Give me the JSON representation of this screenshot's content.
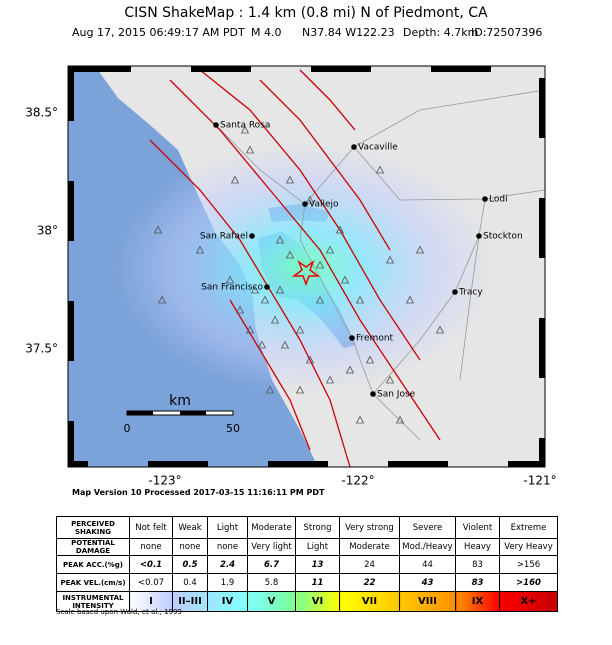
{
  "header": {
    "title": "CISN ShakeMap : 1.4 km (0.8 mi) N of Piedmont, CA",
    "date": "Aug 17, 2015 06:49:17 AM PDT",
    "magnitude": "M 4.0",
    "location": "N37.84 W122.23",
    "depth": "Depth: 4.7km",
    "id": "ID:72507396"
  },
  "map": {
    "lat_labels": [
      "38.5°",
      "38°",
      "37.5°"
    ],
    "lon_labels": [
      "-123°",
      "-122°",
      "-121°"
    ],
    "cities": [
      "Santa Rosa",
      "Vacaville",
      "Vallejo",
      "Lodi",
      "San Rafael",
      "Stockton",
      "San Francisco",
      "Tracy",
      "Fremont",
      "San Jose"
    ],
    "scale_bar": {
      "unit": "km",
      "start": "0",
      "end": "50"
    }
  },
  "processed": "Map Version 10 Processed 2017-03-15 11:16:11 PM PDT",
  "table": {
    "rows": [
      [
        "PERCEIVED SHAKING",
        "Not felt",
        "Weak",
        "Light",
        "Moderate",
        "Strong",
        "Very strong",
        "Severe",
        "Violent",
        "Extreme"
      ],
      [
        "POTENTIAL DAMAGE",
        "none",
        "none",
        "none",
        "Very light",
        "Light",
        "Moderate",
        "Mod./Heavy",
        "Heavy",
        "Very Heavy"
      ],
      [
        "PEAK ACC.(%g)",
        "<0.1",
        "0.5",
        "2.4",
        "6.7",
        "13",
        "24",
        "44",
        "83",
        ">156"
      ],
      [
        "PEAK VEL.(cm/s)",
        "<0.07",
        "0.4",
        "1.9",
        "5.8",
        "11",
        "22",
        "43",
        "83",
        ">160"
      ],
      [
        "INSTRUMENTAL INTENSITY",
        "I",
        "II–III",
        "IV",
        "V",
        "VI",
        "VII",
        "VIII",
        "IX",
        "X+"
      ]
    ]
  },
  "footnote": "Scale based upon Wald, et al.; 1999"
}
